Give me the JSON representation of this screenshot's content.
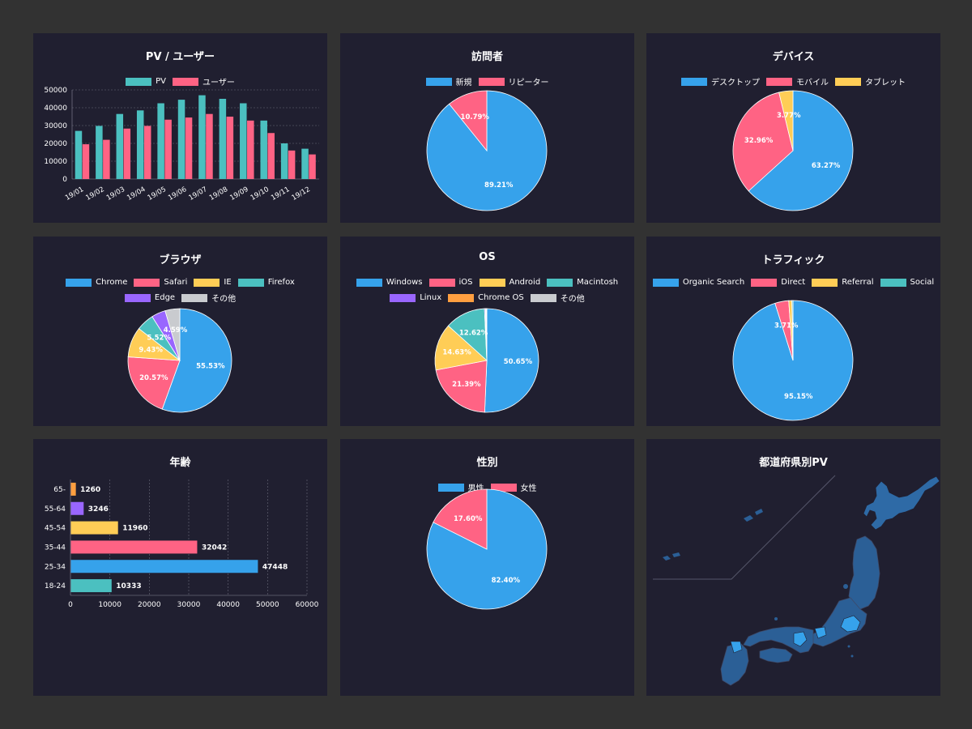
{
  "colors": {
    "blue": "#36a2eb",
    "red": "#ff6384",
    "yellow": "#ffcd56",
    "teal": "#4bc0c0",
    "purple": "#9966ff",
    "orange": "#ff9f40",
    "grey": "#c9cbcf",
    "panel": "#201f30",
    "background": "#323232",
    "map_fill": "#2e6aa6",
    "map_highlight": "#36a2eb"
  },
  "panels": {
    "pv": {
      "title": "PV / ユーザー",
      "legend": [
        "PV",
        "ユーザー"
      ]
    },
    "visitors": {
      "title": "訪問者",
      "legend": [
        "新規",
        "リピーター"
      ]
    },
    "devices": {
      "title": "デバイス",
      "legend": [
        "デスクトップ",
        "モバイル",
        "タブレット"
      ]
    },
    "browser": {
      "title": "ブラウザ",
      "legend": [
        "Chrome",
        "Safari",
        "IE",
        "Firefox",
        "Edge",
        "その他"
      ]
    },
    "os": {
      "title": "OS",
      "legend": [
        "Windows",
        "iOS",
        "Android",
        "Macintosh",
        "Linux",
        "Chrome OS",
        "その他"
      ]
    },
    "traffic": {
      "title": "トラフィック",
      "legend": [
        "Organic Search",
        "Direct",
        "Referral",
        "Social"
      ]
    },
    "age": {
      "title": "年齢"
    },
    "gender": {
      "title": "性別",
      "legend": [
        "男性",
        "女性"
      ]
    },
    "map": {
      "title": "都道府県別PV"
    }
  },
  "chart_data": [
    {
      "type": "bar",
      "title": "PV / ユーザー",
      "categories": [
        "19/01",
        "19/02",
        "19/03",
        "19/04",
        "19/05",
        "19/06",
        "19/07",
        "19/08",
        "19/09",
        "19/10",
        "19/11",
        "19/12"
      ],
      "series": [
        {
          "name": "PV",
          "values": [
            27000,
            29800,
            36500,
            38500,
            42500,
            44500,
            47000,
            45000,
            42500,
            32800,
            20000,
            17000
          ],
          "color": "#4bc0c0"
        },
        {
          "name": "ユーザー",
          "values": [
            19500,
            22000,
            28300,
            29800,
            33300,
            34500,
            36500,
            35000,
            32800,
            25800,
            16000,
            13800
          ],
          "color": "#ff6384"
        }
      ],
      "ylim": [
        0,
        50000
      ],
      "yticks": [
        0,
        10000,
        20000,
        30000,
        40000,
        50000
      ],
      "grid": true,
      "legend": "top"
    },
    {
      "type": "pie",
      "title": "訪問者",
      "categories": [
        "新規",
        "リピーター"
      ],
      "values": [
        89.21,
        10.79
      ],
      "labels": [
        "89.21%",
        "10.79%"
      ],
      "colors": [
        "#36a2eb",
        "#ff6384"
      ],
      "legend": "top"
    },
    {
      "type": "pie",
      "title": "デバイス",
      "categories": [
        "デスクトップ",
        "モバイル",
        "タブレット"
      ],
      "values": [
        63.27,
        32.96,
        3.77
      ],
      "labels": [
        "63.27%",
        "32.96%",
        "3.77%"
      ],
      "colors": [
        "#36a2eb",
        "#ff6384",
        "#ffcd56"
      ],
      "legend": "top"
    },
    {
      "type": "pie",
      "title": "ブラウザ",
      "categories": [
        "Chrome",
        "Safari",
        "IE",
        "Firefox",
        "Edge",
        "その他"
      ],
      "values": [
        55.53,
        20.57,
        9.43,
        5.52,
        4.36,
        4.59
      ],
      "labels": [
        "55.53%",
        "20.57%",
        "9.43%",
        "5.52%",
        "",
        "4.59%"
      ],
      "colors": [
        "#36a2eb",
        "#ff6384",
        "#ffcd56",
        "#4bc0c0",
        "#9966ff",
        "#c9cbcf"
      ],
      "legend": "top"
    },
    {
      "type": "pie",
      "title": "OS",
      "categories": [
        "Windows",
        "iOS",
        "Android",
        "Macintosh",
        "Linux",
        "Chrome OS",
        "その他"
      ],
      "values": [
        50.65,
        21.39,
        14.63,
        12.62,
        0.3,
        0.2,
        0.21
      ],
      "labels": [
        "50.65%",
        "21.39%",
        "14.63%",
        "12.62%",
        "",
        "",
        ""
      ],
      "colors": [
        "#36a2eb",
        "#ff6384",
        "#ffcd56",
        "#4bc0c0",
        "#9966ff",
        "#ff9f40",
        "#c9cbcf"
      ],
      "legend": "top"
    },
    {
      "type": "pie",
      "title": "トラフィック",
      "categories": [
        "Organic Search",
        "Direct",
        "Referral",
        "Social"
      ],
      "values": [
        95.15,
        3.71,
        0.84,
        0.3
      ],
      "labels": [
        "95.15%",
        "3.71%",
        "",
        ""
      ],
      "colors": [
        "#36a2eb",
        "#ff6384",
        "#ffcd56",
        "#4bc0c0"
      ],
      "legend": "top"
    },
    {
      "type": "bar",
      "orientation": "horizontal",
      "title": "年齢",
      "categories": [
        "65-",
        "55-64",
        "45-54",
        "35-44",
        "25-34",
        "18-24"
      ],
      "values": [
        1260,
        3246,
        11960,
        32042,
        47448,
        10333
      ],
      "labels": [
        "1260",
        "3246",
        "11960",
        "32042",
        "47448",
        "10333"
      ],
      "colors": [
        "#ff9f40",
        "#9966ff",
        "#ffcd56",
        "#ff6384",
        "#36a2eb",
        "#4bc0c0"
      ],
      "xlim": [
        0,
        60000
      ],
      "xticks": [
        0,
        10000,
        20000,
        30000,
        40000,
        50000,
        60000
      ],
      "grid": true
    },
    {
      "type": "pie",
      "title": "性別",
      "categories": [
        "男性",
        "女性"
      ],
      "values": [
        82.4,
        17.6
      ],
      "labels": [
        "82.40%",
        "17.60%"
      ],
      "colors": [
        "#36a2eb",
        "#ff6384"
      ],
      "legend": "top"
    }
  ]
}
